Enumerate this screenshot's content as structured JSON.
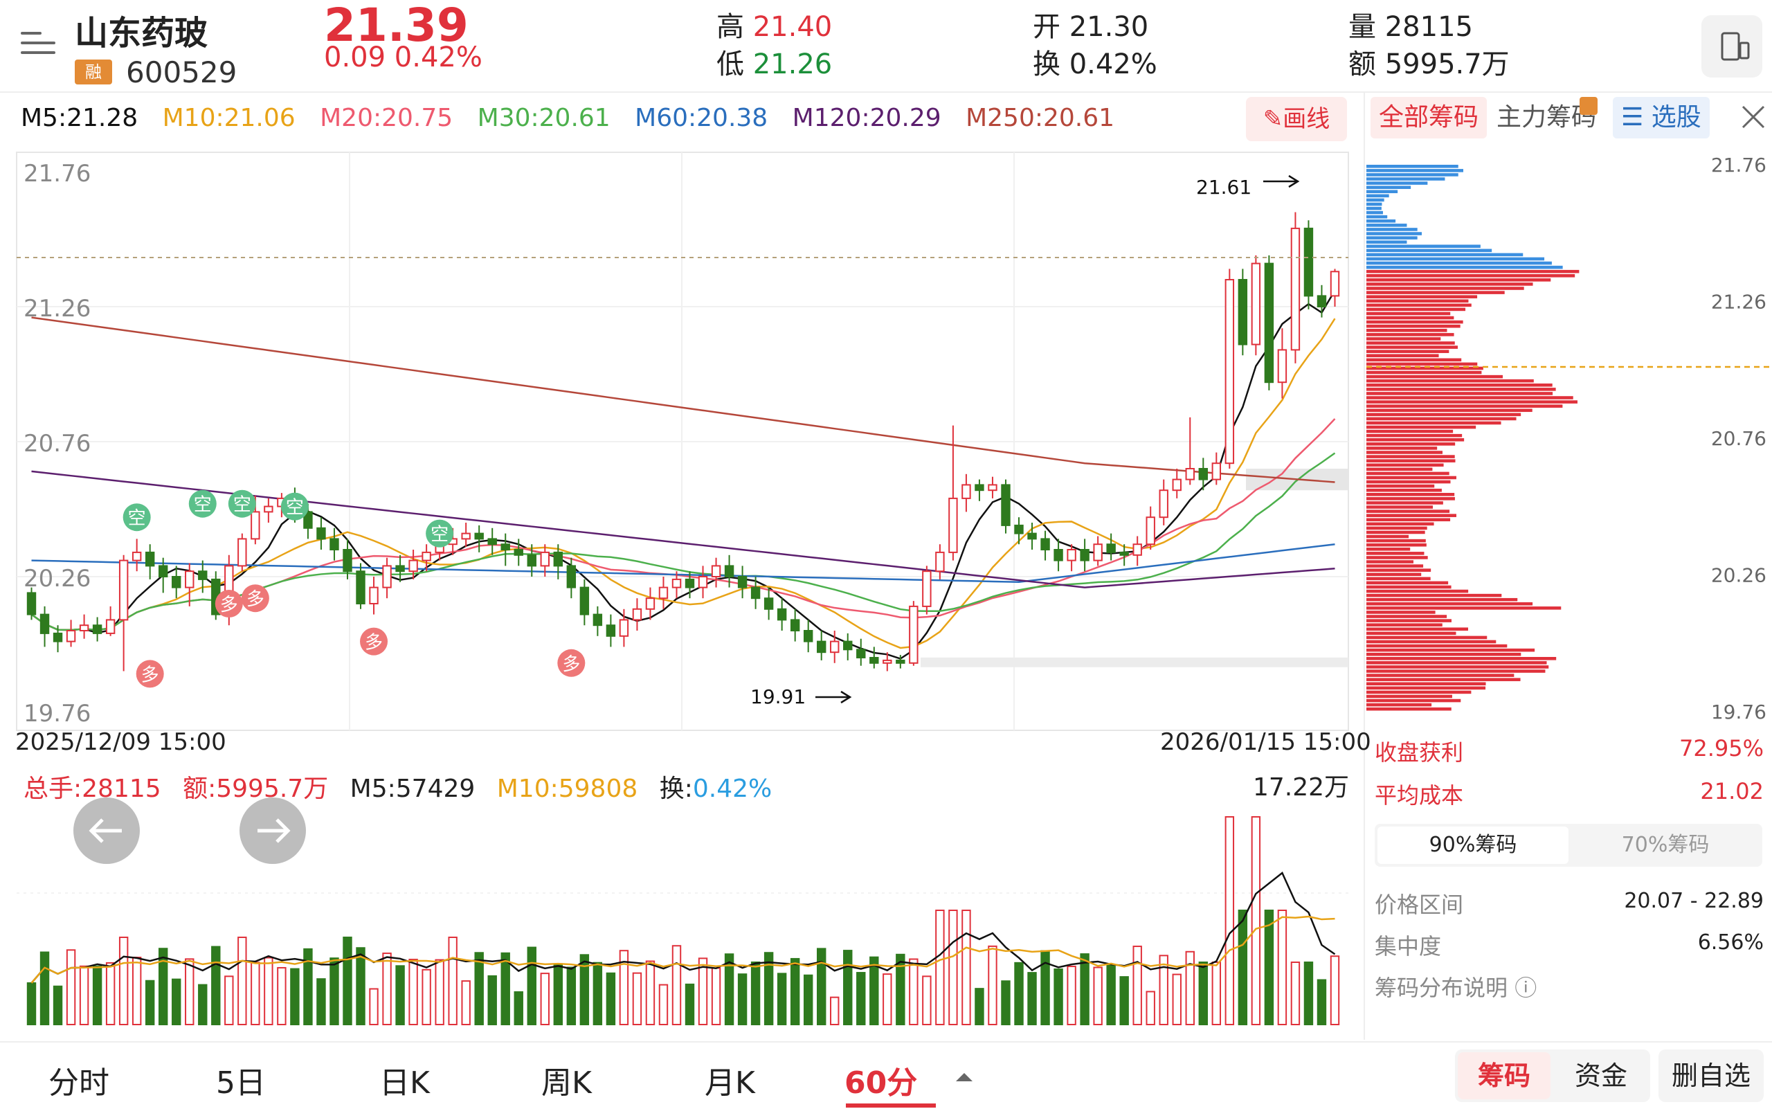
{
  "header": {
    "name": "山东药玻",
    "rong": "融",
    "code": "600529",
    "price": "21.39",
    "change": "0.09  0.42%",
    "high_label": "高",
    "high": "21.40",
    "low_label": "低",
    "low": "21.26",
    "open_label": "开",
    "open": "21.30",
    "turnover_label": "换",
    "turnover": "0.42%",
    "volume_label": "量",
    "volume": "28115",
    "amount_label": "额",
    "amount": "5995.7万"
  },
  "ma": {
    "m5": "M5:21.28",
    "m10": "M10:21.06",
    "m20": "M20:20.75",
    "m30": "M30:20.61",
    "m60": "M60:20.38",
    "m120": "M120:20.29",
    "m250": "M250:20.61",
    "colors": {
      "m5": "#111111",
      "m10": "#e8a317",
      "m20": "#ee5a6f",
      "m30": "#4cb04c",
      "m60": "#2a6ebd",
      "m120": "#5c1f6e",
      "m250": "#b5473a"
    }
  },
  "draw_button": "画线",
  "chip_tabs": {
    "all": "全部筹码",
    "main": "主力筹码",
    "select": "选股"
  },
  "price_axis": [
    "21.76",
    "21.26",
    "20.76",
    "20.26",
    "19.76"
  ],
  "chip_axis": [
    "21.76",
    "21.26",
    "20.76",
    "20.26",
    "19.76"
  ],
  "annotations": {
    "high": "21.61",
    "low": "19.91"
  },
  "dates": {
    "start": "2025/12/09 15:00",
    "end": "2026/01/15 15:00"
  },
  "volume_info": {
    "total": "总手:28115",
    "amount": "额:5995.7万",
    "m5": "M5:57429",
    "m10": "M10:59808",
    "turnover_label": "换:",
    "turnover": "0.42%",
    "max": "17.22万"
  },
  "chip_stats": {
    "profit_label": "收盘获利",
    "profit": "72.95%",
    "avg_label": "平均成本",
    "avg": "21.02",
    "toggle_on": "90%筹码",
    "toggle_off": "70%筹码",
    "range_label": "价格区间",
    "range": "20.07 - 22.89",
    "conc_label": "集中度",
    "conc": "6.56%",
    "help": "筹码分布说明"
  },
  "signal_labels": {
    "kong": "空",
    "duo": "多"
  },
  "bottom_nav": {
    "tabs": [
      "分时",
      "5日",
      "日K",
      "周K",
      "月K",
      "60分"
    ],
    "active": "60分",
    "chip": "筹码",
    "fund": "资金",
    "remove": "删自选"
  },
  "chart_data": {
    "type": "candlestick",
    "ylim": [
      19.76,
      21.76
    ],
    "candles": [
      [
        20.2,
        20.12,
        20.22,
        20.1
      ],
      [
        20.12,
        20.05,
        20.15,
        20.0
      ],
      [
        20.05,
        20.02,
        20.08,
        19.98
      ],
      [
        20.02,
        20.06,
        20.1,
        20.0
      ],
      [
        20.06,
        20.08,
        20.12,
        20.03
      ],
      [
        20.08,
        20.05,
        20.11,
        20.02
      ],
      [
        20.05,
        20.1,
        20.15,
        20.04
      ],
      [
        20.1,
        20.32,
        20.34,
        19.91
      ],
      [
        20.32,
        20.35,
        20.4,
        20.28
      ],
      [
        20.35,
        20.3,
        20.38,
        20.25
      ],
      [
        20.3,
        20.26,
        20.33,
        20.2
      ],
      [
        20.26,
        20.22,
        20.3,
        20.18
      ],
      [
        20.22,
        20.28,
        20.31,
        20.15
      ],
      [
        20.28,
        20.25,
        20.32,
        20.2
      ],
      [
        20.25,
        20.12,
        20.28,
        20.1
      ],
      [
        20.12,
        20.3,
        20.34,
        20.08
      ],
      [
        20.3,
        20.4,
        20.42,
        20.28
      ],
      [
        20.4,
        20.5,
        20.56,
        20.38
      ],
      [
        20.5,
        20.52,
        20.55,
        20.46
      ],
      [
        20.52,
        20.55,
        20.57,
        20.48
      ],
      [
        20.55,
        20.5,
        20.59,
        20.46
      ],
      [
        20.5,
        20.44,
        20.53,
        20.4
      ],
      [
        20.44,
        20.4,
        20.48,
        20.36
      ],
      [
        20.4,
        20.36,
        20.44,
        20.32
      ],
      [
        20.36,
        20.28,
        20.4,
        20.25
      ],
      [
        20.28,
        20.16,
        20.31,
        20.14
      ],
      [
        20.16,
        20.22,
        20.26,
        20.12
      ],
      [
        20.22,
        20.3,
        20.33,
        20.18
      ],
      [
        20.3,
        20.28,
        20.34,
        20.24
      ],
      [
        20.28,
        20.32,
        20.36,
        20.25
      ],
      [
        20.32,
        20.35,
        20.38,
        20.28
      ],
      [
        20.35,
        20.38,
        20.42,
        20.32
      ],
      [
        20.38,
        20.4,
        20.44,
        20.34
      ],
      [
        20.4,
        20.42,
        20.46,
        20.37
      ],
      [
        20.42,
        20.4,
        20.45,
        20.35
      ],
      [
        20.4,
        20.38,
        20.44,
        20.34
      ],
      [
        20.38,
        20.36,
        20.42,
        20.3
      ],
      [
        20.36,
        20.34,
        20.4,
        20.3
      ],
      [
        20.34,
        20.3,
        20.38,
        20.26
      ],
      [
        20.3,
        20.35,
        20.38,
        20.26
      ],
      [
        20.35,
        20.3,
        20.38,
        20.25
      ],
      [
        20.3,
        20.22,
        20.33,
        20.18
      ],
      [
        20.22,
        20.12,
        20.25,
        20.08
      ],
      [
        20.12,
        20.08,
        20.15,
        20.04
      ],
      [
        20.08,
        20.04,
        20.12,
        20.0
      ],
      [
        20.04,
        20.1,
        20.14,
        20.0
      ],
      [
        20.1,
        20.14,
        20.18,
        20.06
      ],
      [
        20.14,
        20.18,
        20.22,
        20.1
      ],
      [
        20.18,
        20.22,
        20.26,
        20.14
      ],
      [
        20.22,
        20.25,
        20.28,
        20.18
      ],
      [
        20.25,
        20.22,
        20.28,
        20.18
      ],
      [
        20.22,
        20.26,
        20.3,
        20.18
      ],
      [
        20.26,
        20.3,
        20.33,
        20.22
      ],
      [
        20.3,
        20.26,
        20.34,
        20.22
      ],
      [
        20.26,
        20.22,
        20.3,
        20.18
      ],
      [
        20.22,
        20.18,
        20.26,
        20.14
      ],
      [
        20.18,
        20.14,
        20.22,
        20.1
      ],
      [
        20.14,
        20.1,
        20.18,
        20.06
      ],
      [
        20.1,
        20.06,
        20.14,
        20.02
      ],
      [
        20.06,
        20.02,
        20.1,
        19.98
      ],
      [
        20.02,
        19.98,
        20.06,
        19.95
      ],
      [
        19.98,
        20.02,
        20.06,
        19.94
      ],
      [
        20.02,
        19.99,
        20.05,
        19.95
      ],
      [
        19.99,
        19.96,
        20.03,
        19.93
      ],
      [
        19.96,
        19.94,
        20.0,
        19.92
      ],
      [
        19.94,
        19.95,
        19.98,
        19.91
      ],
      [
        19.95,
        19.94,
        19.97,
        19.92
      ],
      [
        19.94,
        20.15,
        20.17,
        19.93
      ],
      [
        20.15,
        20.28,
        20.3,
        20.12
      ],
      [
        20.28,
        20.35,
        20.38,
        20.25
      ],
      [
        20.35,
        20.55,
        20.82,
        20.32
      ],
      [
        20.55,
        20.6,
        20.64,
        20.5
      ],
      [
        20.6,
        20.58,
        20.62,
        20.54
      ],
      [
        20.58,
        20.6,
        20.63,
        20.55
      ],
      [
        20.6,
        20.45,
        20.62,
        20.42
      ],
      [
        20.45,
        20.42,
        20.48,
        20.38
      ],
      [
        20.42,
        20.4,
        20.46,
        20.36
      ],
      [
        20.4,
        20.36,
        20.43,
        20.32
      ],
      [
        20.36,
        20.32,
        20.4,
        20.28
      ],
      [
        20.32,
        20.36,
        20.38,
        20.28
      ],
      [
        20.36,
        20.32,
        20.4,
        20.28
      ],
      [
        20.32,
        20.38,
        20.41,
        20.3
      ],
      [
        20.38,
        20.35,
        20.42,
        20.32
      ],
      [
        20.35,
        20.34,
        20.38,
        20.3
      ],
      [
        20.34,
        20.38,
        20.41,
        20.3
      ],
      [
        20.38,
        20.48,
        20.52,
        20.36
      ],
      [
        20.48,
        20.58,
        20.62,
        20.45
      ],
      [
        20.58,
        20.62,
        20.66,
        20.55
      ],
      [
        20.62,
        20.66,
        20.85,
        20.6
      ],
      [
        20.66,
        20.62,
        20.7,
        20.58
      ],
      [
        20.62,
        20.68,
        20.72,
        20.6
      ],
      [
        20.68,
        21.36,
        21.4,
        20.66
      ],
      [
        21.36,
        21.12,
        21.4,
        21.08
      ],
      [
        21.12,
        21.42,
        21.45,
        21.08
      ],
      [
        21.42,
        20.98,
        21.45,
        20.95
      ],
      [
        20.98,
        21.1,
        21.18,
        20.92
      ],
      [
        21.1,
        21.55,
        21.61,
        21.05
      ],
      [
        21.55,
        21.3,
        21.58,
        21.25
      ],
      [
        21.3,
        21.26,
        21.34,
        21.22
      ],
      [
        21.3,
        21.39,
        21.4,
        21.26
      ]
    ]
  }
}
